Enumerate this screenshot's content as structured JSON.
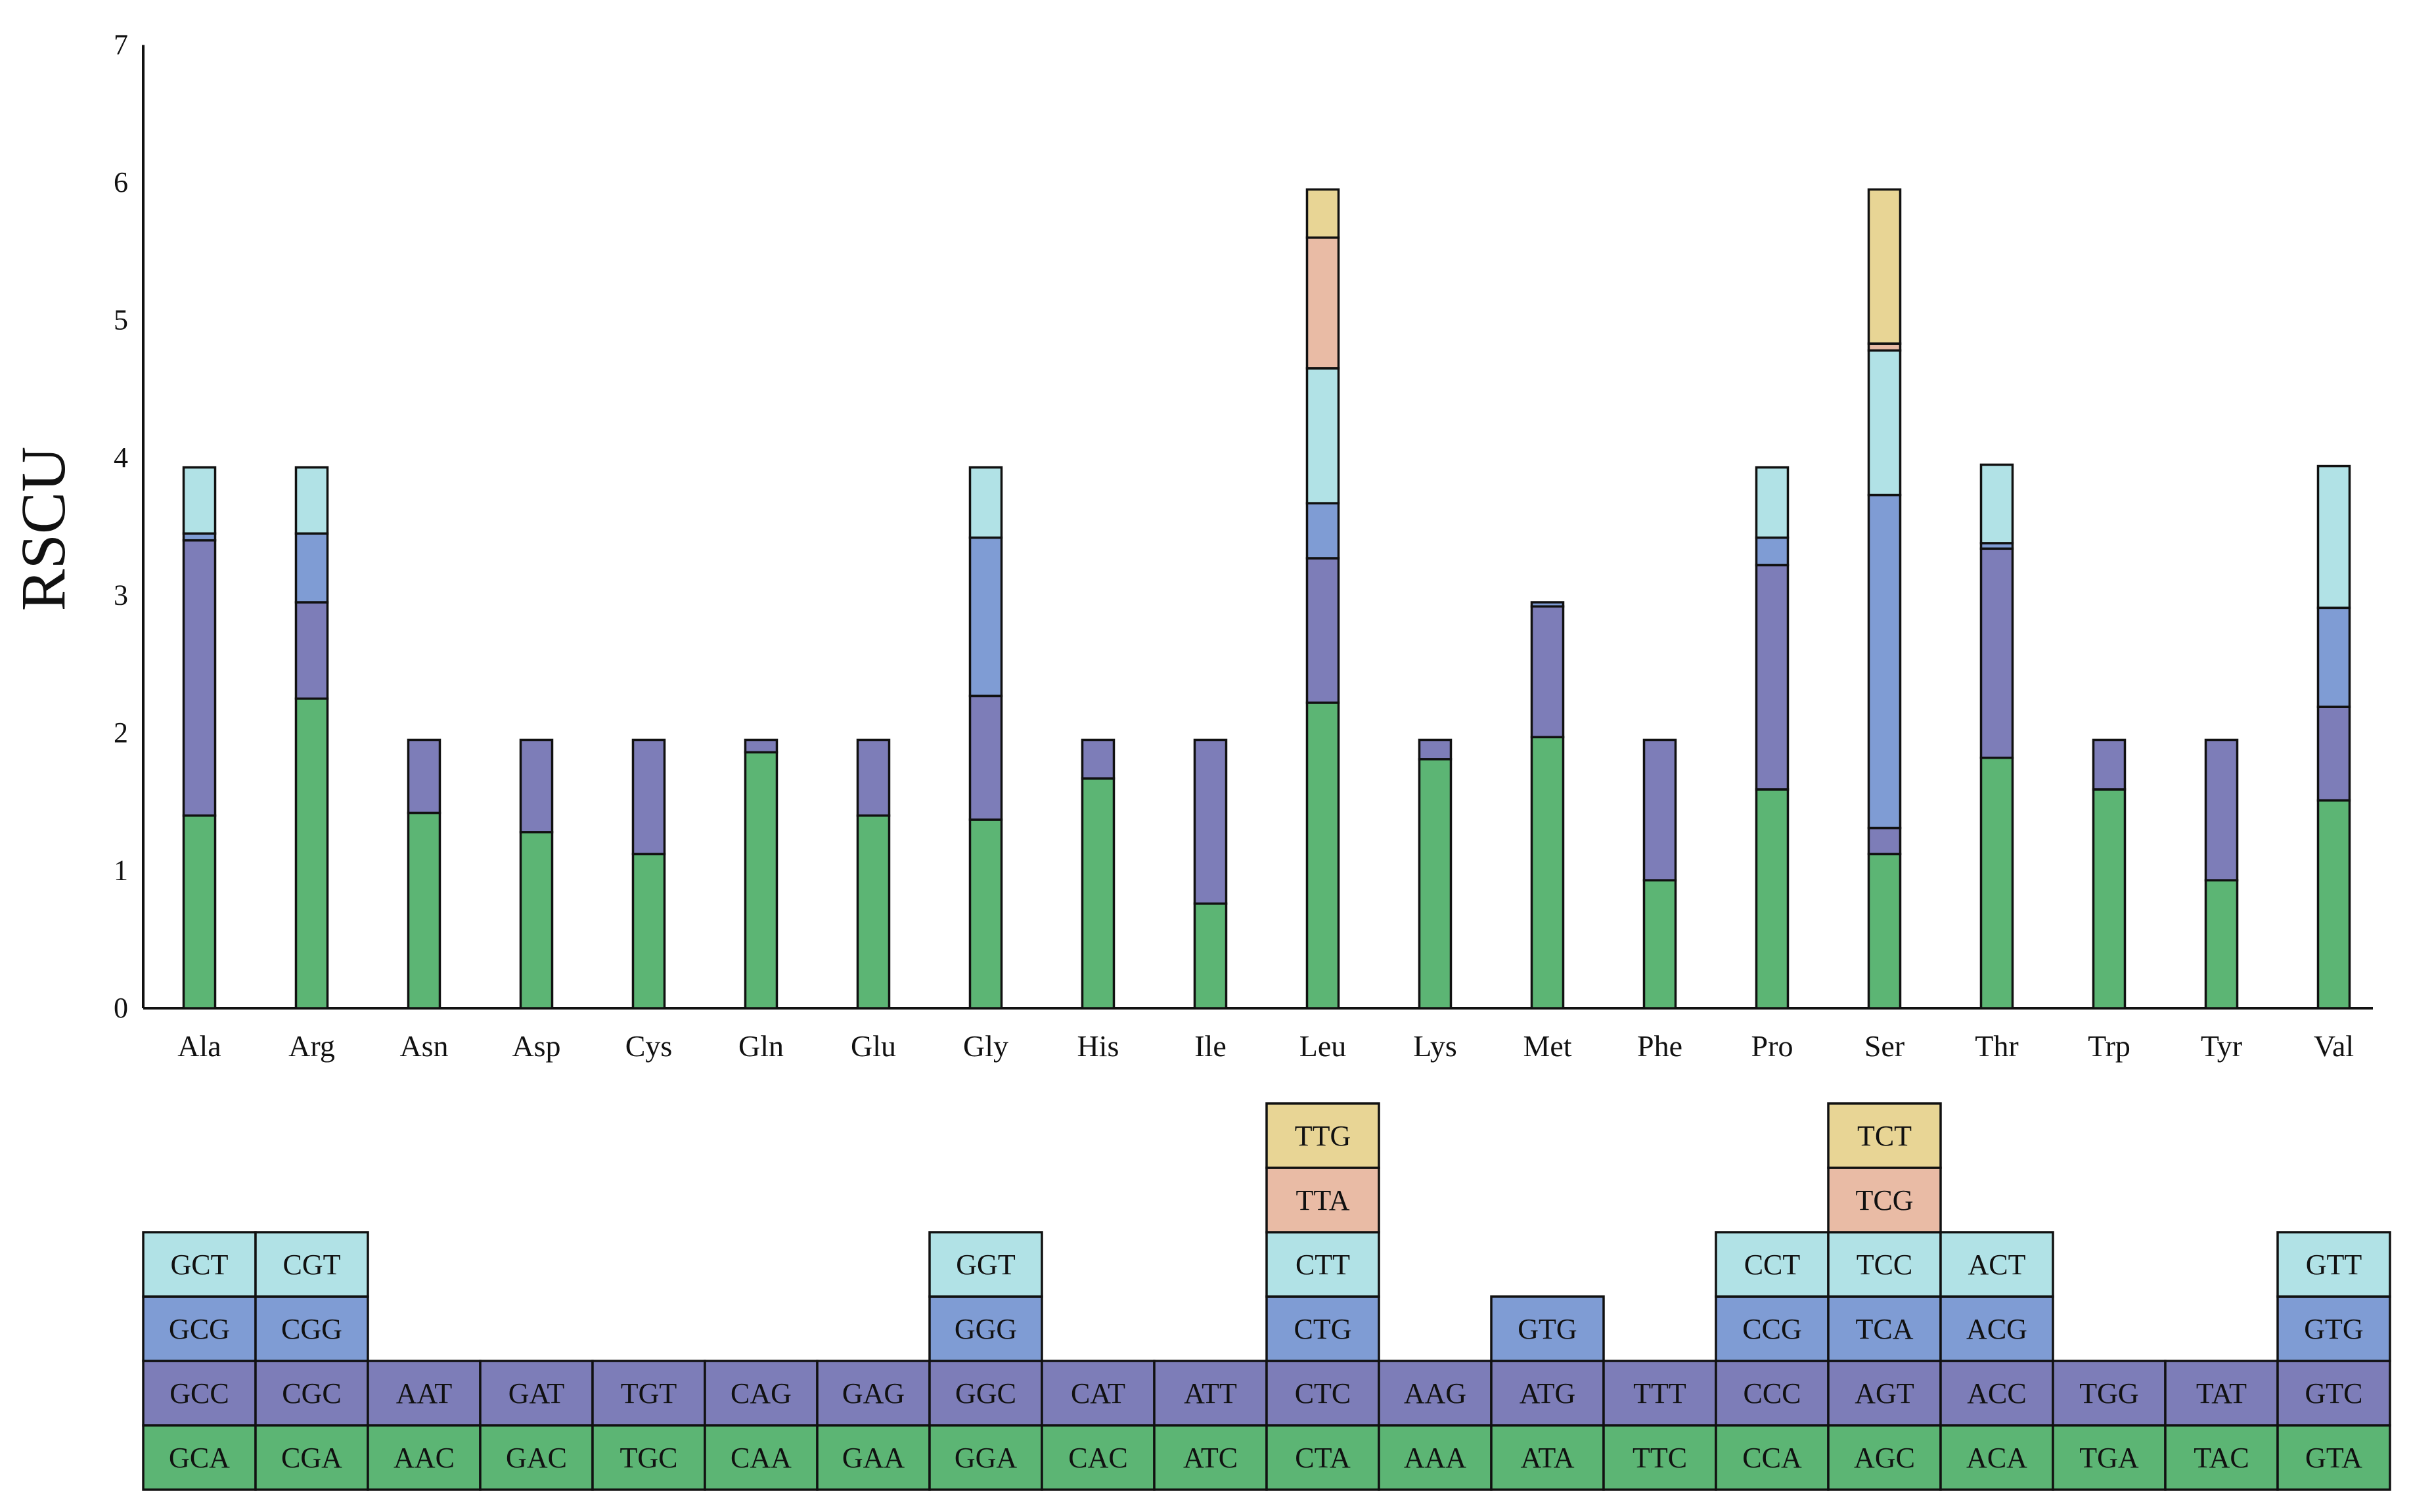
{
  "chart_data": {
    "type": "bar",
    "stacked": true,
    "title": "",
    "xlabel": "",
    "ylabel": "RSCU",
    "ylim": [
      0,
      7
    ],
    "yticks": [
      "0",
      "1",
      "2",
      "3",
      "4",
      "5",
      "6",
      "7"
    ],
    "colors": [
      "#5cb574",
      "#7d7db8",
      "#7f9cd4",
      "#b1e2e6",
      "#e9bba5",
      "#e8d595"
    ],
    "categories": [
      {
        "name": "Ala",
        "codons": [
          "GCA",
          "GCC",
          "GCG",
          "GCT"
        ],
        "values": [
          1.4,
          2.0,
          0.05,
          0.48
        ]
      },
      {
        "name": "Arg",
        "codons": [
          "CGA",
          "CGC",
          "CGG",
          "CGT"
        ],
        "values": [
          2.25,
          0.7,
          0.5,
          0.48
        ]
      },
      {
        "name": "Asn",
        "codons": [
          "AAC",
          "AAT"
        ],
        "values": [
          1.42,
          0.53
        ]
      },
      {
        "name": "Asp",
        "codons": [
          "GAC",
          "GAT"
        ],
        "values": [
          1.28,
          0.67
        ]
      },
      {
        "name": "Cys",
        "codons": [
          "TGC",
          "TGT"
        ],
        "values": [
          1.12,
          0.83
        ]
      },
      {
        "name": "Gln",
        "codons": [
          "CAA",
          "CAG"
        ],
        "values": [
          1.86,
          0.09
        ]
      },
      {
        "name": "Glu",
        "codons": [
          "GAA",
          "GAG"
        ],
        "values": [
          1.4,
          0.55
        ]
      },
      {
        "name": "Gly",
        "codons": [
          "GGA",
          "GGC",
          "GGG",
          "GGT"
        ],
        "values": [
          1.37,
          0.9,
          1.15,
          0.51
        ]
      },
      {
        "name": "His",
        "codons": [
          "CAC",
          "CAT"
        ],
        "values": [
          1.67,
          0.28
        ]
      },
      {
        "name": "Ile",
        "codons": [
          "ATC",
          "ATT"
        ],
        "values": [
          0.76,
          1.19
        ]
      },
      {
        "name": "Leu",
        "codons": [
          "CTA",
          "CTC",
          "CTG",
          "CTT",
          "TTA",
          "TTG"
        ],
        "values": [
          2.22,
          1.05,
          0.4,
          0.98,
          0.95,
          0.35
        ]
      },
      {
        "name": "Lys",
        "codons": [
          "AAA",
          "AAG"
        ],
        "values": [
          1.81,
          0.14
        ]
      },
      {
        "name": "Met",
        "codons": [
          "ATA",
          "ATG",
          "GTG"
        ],
        "values": [
          1.97,
          0.95,
          0.03
        ]
      },
      {
        "name": "Phe",
        "codons": [
          "TTC",
          "TTT"
        ],
        "values": [
          0.93,
          1.02
        ]
      },
      {
        "name": "Pro",
        "codons": [
          "CCA",
          "CCC",
          "CCG",
          "CCT"
        ],
        "values": [
          1.59,
          1.63,
          0.2,
          0.51
        ]
      },
      {
        "name": "Ser",
        "codons": [
          "AGC",
          "AGT",
          "TCA",
          "TCC",
          "TCG",
          "TCT"
        ],
        "values": [
          1.12,
          0.19,
          2.42,
          1.05,
          0.05,
          1.12
        ]
      },
      {
        "name": "Thr",
        "codons": [
          "ACA",
          "ACC",
          "ACG",
          "ACT"
        ],
        "values": [
          1.82,
          1.52,
          0.04,
          0.57
        ]
      },
      {
        "name": "Trp",
        "codons": [
          "TGA",
          "TGG"
        ],
        "values": [
          1.59,
          0.36
        ]
      },
      {
        "name": "Tyr",
        "codons": [
          "TAC",
          "TAT"
        ],
        "values": [
          0.93,
          1.02
        ]
      },
      {
        "name": "Val",
        "codons": [
          "GTA",
          "GTC",
          "GTG",
          "GTT"
        ],
        "values": [
          1.51,
          0.68,
          0.72,
          1.03
        ]
      }
    ]
  }
}
